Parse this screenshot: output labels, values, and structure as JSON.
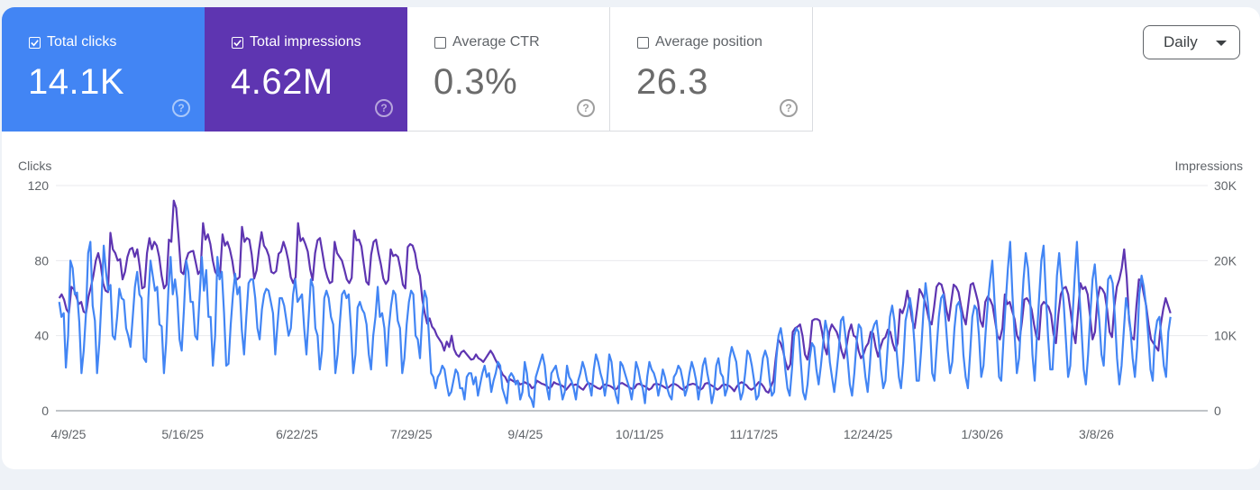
{
  "cards": [
    {
      "label": "Total clicks",
      "value": "14.1K",
      "checked": true
    },
    {
      "label": "Total impressions",
      "value": "4.62M",
      "checked": true
    },
    {
      "label": "Average CTR",
      "value": "0.3%",
      "checked": false
    },
    {
      "label": "Average position",
      "value": "26.3",
      "checked": false
    }
  ],
  "granularity": {
    "selected": "Daily"
  },
  "colors": {
    "clicks": "#4285f4",
    "impressions": "#5e35b1",
    "grid": "#e8eaed",
    "axis": "#9aa0a6"
  },
  "chart_data": {
    "type": "line",
    "left_axis": {
      "label": "Clicks",
      "ticks": [
        "0",
        "40",
        "80",
        "120"
      ],
      "range": [
        0,
        120
      ]
    },
    "right_axis": {
      "label": "Impressions",
      "ticks": [
        "0",
        "10K",
        "20K",
        "30K"
      ],
      "range": [
        0,
        30000
      ]
    },
    "x_ticks": [
      "4/9/25",
      "5/16/25",
      "6/22/25",
      "7/29/25",
      "9/4/25",
      "10/11/25",
      "11/17/25",
      "12/24/25",
      "1/30/26",
      "3/8/26"
    ],
    "x_start": "4/5/25",
    "x_days": 361,
    "grid": true,
    "series": [
      {
        "name": "Clicks",
        "axis": "left",
        "values": [
          58,
          50,
          52,
          23,
          40,
          80,
          76,
          62,
          63,
          47,
          20,
          32,
          52,
          84,
          90,
          56,
          48,
          20,
          36,
          60,
          88,
          74,
          64,
          67,
          40,
          38,
          50,
          65,
          60,
          59,
          44,
          40,
          34,
          50,
          66,
          74,
          62,
          60,
          28,
          26,
          60,
          80,
          72,
          64,
          66,
          46,
          45,
          20,
          36,
          64,
          82,
          62,
          70,
          60,
          38,
          32,
          54,
          80,
          74,
          58,
          58,
          40,
          38,
          60,
          82,
          64,
          75,
          50,
          50,
          24,
          40,
          82,
          70,
          74,
          52,
          24,
          25,
          46,
          62,
          73,
          62,
          66,
          43,
          30,
          50,
          68,
          70,
          70,
          60,
          44,
          38,
          54,
          62,
          65,
          64,
          58,
          52,
          30,
          46,
          60,
          60,
          56,
          48,
          40,
          44,
          62,
          70,
          58,
          60,
          62,
          44,
          30,
          50,
          70,
          66,
          44,
          40,
          22,
          32,
          60,
          64,
          60,
          50,
          46,
          20,
          30,
          47,
          62,
          64,
          60,
          62,
          44,
          20,
          30,
          55,
          58,
          54,
          52,
          46,
          30,
          22,
          40,
          50,
          66,
          50,
          52,
          44,
          24,
          44,
          56,
          64,
          62,
          48,
          44,
          20,
          28,
          46,
          58,
          64,
          62,
          40,
          38,
          28,
          50,
          64,
          60,
          40,
          20,
          18,
          12,
          18,
          20,
          24,
          22,
          14,
          8,
          10,
          16,
          22,
          20,
          12,
          12,
          6,
          18,
          20,
          20,
          14,
          18,
          8,
          14,
          20,
          24,
          18,
          20,
          10,
          16,
          20,
          26,
          24,
          12,
          8,
          4,
          18,
          20,
          18,
          14,
          16,
          6,
          10,
          26,
          20,
          8,
          6,
          2,
          18,
          22,
          26,
          30,
          24,
          12,
          6,
          20,
          22,
          24,
          18,
          14,
          6,
          10,
          24,
          18,
          16,
          12,
          6,
          16,
          20,
          26,
          22,
          16,
          14,
          8,
          22,
          30,
          26,
          20,
          16,
          8,
          16,
          30,
          26,
          14,
          8,
          4,
          26,
          24,
          20,
          16,
          12,
          6,
          14,
          26,
          22,
          16,
          12,
          4,
          18,
          26,
          22,
          20,
          16,
          8,
          14,
          22,
          18,
          12,
          8,
          6,
          18,
          20,
          24,
          22,
          16,
          8,
          12,
          20,
          26,
          22,
          16,
          6,
          14,
          24,
          28,
          20,
          14,
          4,
          10,
          24,
          28,
          20,
          18,
          8,
          12,
          28,
          34,
          30,
          26,
          14,
          6,
          10,
          20,
          32,
          30,
          24,
          16,
          6,
          8,
          18,
          28,
          32,
          28,
          16,
          8,
          10,
          28,
          40,
          44,
          36,
          22,
          12,
          8,
          22,
          40,
          44,
          42,
          26,
          10,
          6,
          14,
          28,
          36,
          34,
          22,
          14,
          24,
          36,
          48,
          42,
          26,
          18,
          10,
          20,
          32,
          48,
          50,
          40,
          28,
          14,
          8,
          20,
          36,
          46,
          44,
          30,
          18,
          10,
          24,
          42,
          46,
          48,
          38,
          22,
          12,
          16,
          34,
          50,
          56,
          48,
          32,
          18,
          12,
          26,
          48,
          54,
          60,
          52,
          36,
          16,
          16,
          32,
          52,
          68,
          58,
          44,
          20,
          16,
          34,
          50,
          60,
          62,
          48,
          32,
          20,
          26,
          44,
          56,
          58,
          52,
          30,
          18,
          12,
          30,
          50,
          56,
          54,
          40,
          18,
          24,
          42,
          58,
          70,
          80,
          58,
          40,
          18,
          16,
          38,
          58,
          76,
          90,
          62,
          40,
          20,
          28,
          50,
          70,
          84,
          76,
          58,
          30,
          16,
          40,
          60,
          80,
          88,
          62,
          40,
          22,
          22,
          44,
          72,
          84,
          70,
          58,
          38,
          18,
          24,
          50,
          72,
          90,
          64,
          44,
          22,
          14,
          30,
          52,
          70,
          78,
          62,
          48,
          30,
          24,
          48,
          70,
          72,
          68,
          50,
          28,
          14,
          24,
          42,
          60,
          54,
          44,
          28,
          18,
          34,
          62,
          72,
          66,
          56,
          40,
          22,
          16,
          40,
          48,
          50,
          38,
          24,
          18,
          42,
          50
        ]
      },
      {
        "name": "Impressions",
        "axis": "right",
        "values": [
          15000,
          15500,
          14800,
          13500,
          13000,
          16500,
          16200,
          15200,
          14200,
          14500,
          13200,
          13000,
          15200,
          16500,
          18000,
          20000,
          21000,
          19500,
          17000,
          16000,
          15800,
          23700,
          21500,
          21000,
          20000,
          20200,
          17500,
          18500,
          20500,
          21500,
          21700,
          20500,
          21500,
          19200,
          16300,
          16500,
          21000,
          23000,
          21500,
          22500,
          22000,
          20500,
          18000,
          16300,
          16800,
          22800,
          22500,
          28000,
          27000,
          23000,
          18500,
          18200,
          20000,
          21000,
          21200,
          21300,
          19800,
          18200,
          18700,
          25000,
          22800,
          23500,
          22200,
          20000,
          18500,
          18000,
          18200,
          23500,
          22000,
          22500,
          21500,
          20000,
          17800,
          17500,
          17800,
          24500,
          22500,
          23000,
          22800,
          20800,
          17600,
          18700,
          21500,
          23800,
          22000,
          21500,
          20600,
          18500,
          18300,
          18600,
          20900,
          21200,
          22500,
          21500,
          20000,
          17800,
          17000,
          17800,
          25000,
          22600,
          23000,
          22200,
          21200,
          18800,
          17400,
          21000,
          22700,
          23000,
          21000,
          19000,
          17800,
          17000,
          17200,
          22500,
          21000,
          20500,
          20000,
          18800,
          17500,
          17000,
          17700,
          24000,
          22700,
          22800,
          21900,
          19500,
          17200,
          16800,
          20800,
          22500,
          22800,
          21000,
          19500,
          17600,
          16900,
          17400,
          21500,
          20600,
          20800,
          20500,
          18900,
          16800,
          16300,
          21800,
          22200,
          22000,
          21000,
          19000,
          18000,
          14800,
          13000,
          11600,
          12300,
          11200,
          10800,
          10000,
          9500,
          9000,
          8000,
          9200,
          8500,
          10000,
          8200,
          7500,
          7200,
          7800,
          8000,
          7600,
          7200,
          6800,
          6900,
          7500,
          7000,
          6800,
          6500,
          7000,
          7500,
          8000,
          7500,
          6800,
          6200,
          5500,
          4800,
          4500,
          3800,
          4200,
          4000,
          3800,
          4000,
          3500,
          3600,
          3800,
          3600,
          3500,
          3000,
          3200,
          4000,
          3800,
          3600,
          3500,
          3300,
          3000,
          3200,
          3800,
          3600,
          3500,
          3400,
          3200,
          2800,
          3200,
          3600,
          3400,
          3500,
          3300,
          3000,
          2800,
          3300,
          3700,
          3600,
          3400,
          3200,
          3000,
          2900,
          3300,
          3500,
          3400,
          3300,
          3100,
          2800,
          3000,
          3600,
          3700,
          3500,
          3300,
          3100,
          2900,
          3000,
          3500,
          3600,
          3400,
          3300,
          3100,
          2800,
          3000,
          3500,
          3600,
          3500,
          3400,
          3200,
          3000,
          3100,
          3400,
          3600,
          3500,
          3300,
          3000,
          2800,
          3100,
          3400,
          3500,
          3600,
          3500,
          3200,
          2800,
          3000,
          3600,
          3700,
          3500,
          3300,
          3100,
          2800,
          3000,
          3400,
          3500,
          3400,
          3300,
          3000,
          2600,
          3200,
          3600,
          3800,
          3600,
          3400,
          3000,
          2800,
          3000,
          3400,
          3800,
          3600,
          3200,
          2600,
          2400,
          3200,
          4000,
          7000,
          9500,
          9000,
          8000,
          6500,
          5500,
          6200,
          10500,
          11000,
          11200,
          11500,
          10000,
          7500,
          6800,
          8500,
          12000,
          12200,
          12200,
          12000,
          10500,
          8500,
          7500,
          10500,
          11500,
          11000,
          10500,
          9500,
          8000,
          7000,
          8500,
          10500,
          11500,
          10000,
          9800,
          8000,
          7000,
          7500,
          8500,
          9000,
          10500,
          10300,
          8500,
          7200,
          8500,
          9500,
          9800,
          10800,
          10500,
          9000,
          8000,
          9000,
          13500,
          13000,
          14000,
          16000,
          14200,
          12000,
          11000,
          13500,
          16200,
          15600,
          14800,
          13500,
          12000,
          11500,
          13800,
          16500,
          17000,
          16800,
          15600,
          13500,
          12000,
          14500,
          16800,
          16500,
          15800,
          14000,
          12500,
          11500,
          14200,
          16800,
          17000,
          15800,
          14500,
          12000,
          11200,
          14500,
          15200,
          14800,
          14000,
          12000,
          10000,
          9500,
          11000,
          15500,
          14200,
          14500,
          13300,
          12200,
          10000,
          9300,
          11800,
          14800,
          15000,
          14500,
          13500,
          11500,
          9800,
          9500,
          14000,
          14500,
          14200,
          13800,
          12800,
          10200,
          9000,
          12800,
          15500,
          16300,
          16500,
          15500,
          13200,
          10500,
          9000,
          13000,
          17000,
          16200,
          16500,
          15500,
          12500,
          9500,
          10500,
          14800,
          16500,
          16200,
          15600,
          13500,
          10500,
          9800,
          14000,
          16500,
          17500,
          19000,
          21500,
          17800,
          12000,
          9800,
          9500,
          14000,
          17500,
          17400,
          15600,
          14000,
          11500,
          9500,
          9000,
          8500,
          8000,
          11500,
          13500,
          15000,
          14000,
          13000
        ]
      }
    ]
  }
}
